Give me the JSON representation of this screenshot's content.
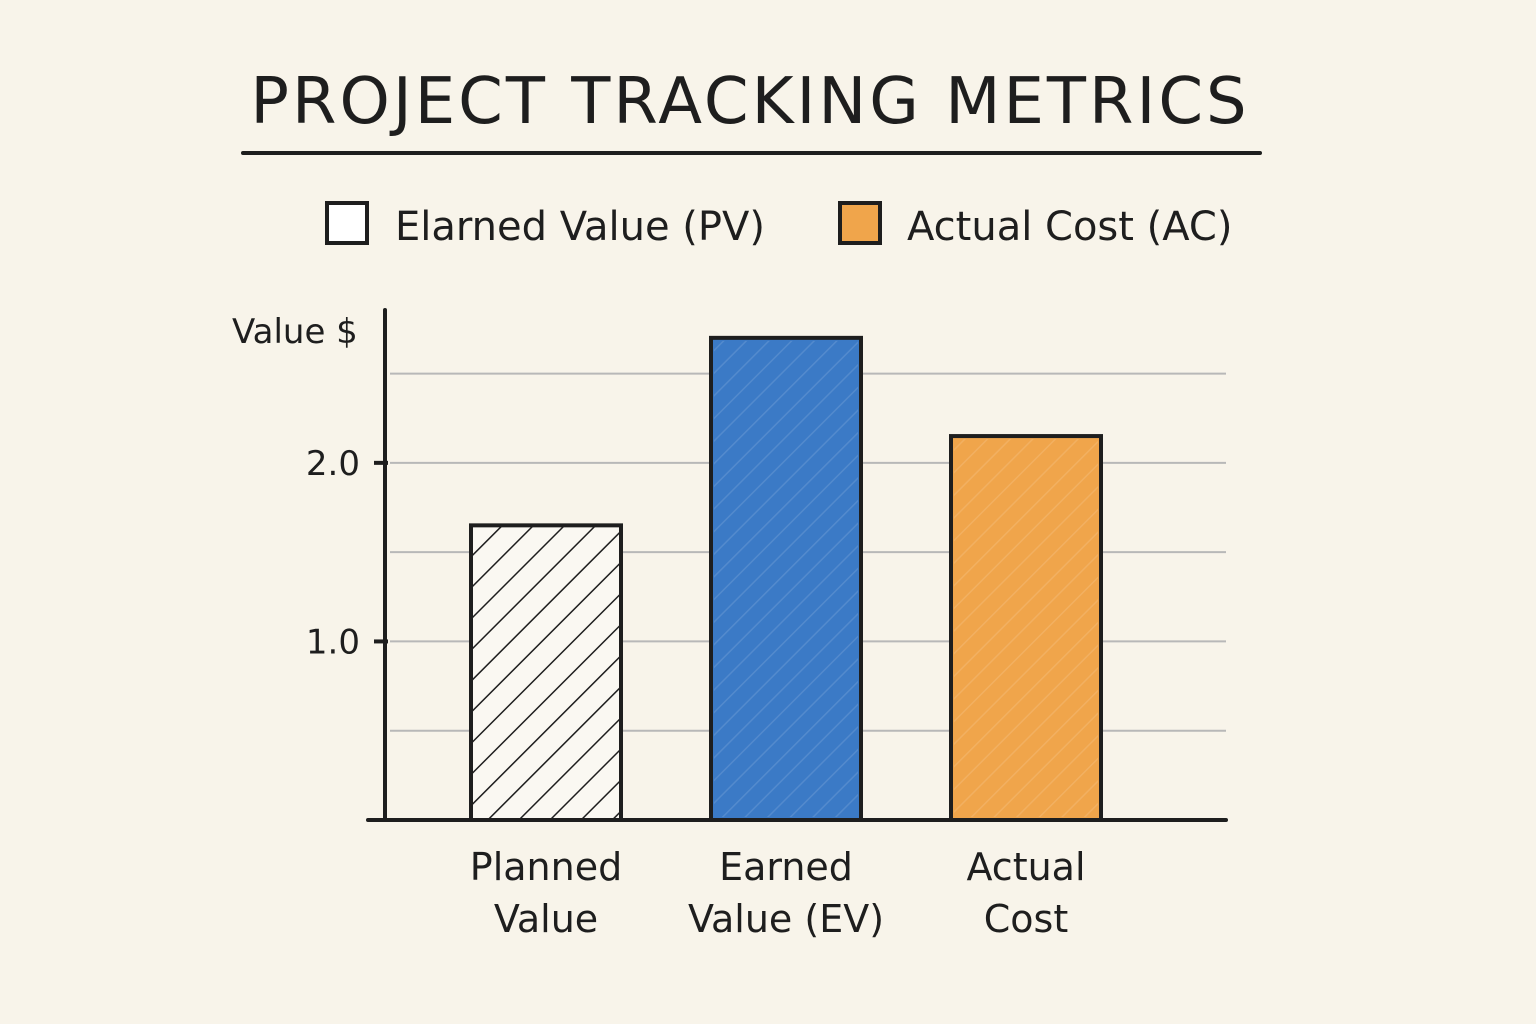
{
  "chart_data": {
    "type": "bar",
    "title": "PROJECT TRACKING METRICS",
    "ylabel": "Value $",
    "xlabel": "",
    "categories": [
      [
        "Planned",
        "Value"
      ],
      [
        "Earned",
        "Value (EV)"
      ],
      [
        "Actual",
        "Cost"
      ]
    ],
    "values": [
      1.65,
      2.7,
      2.15
    ],
    "bar_fills": [
      "hatch",
      "#3b7ac6",
      "#f0a54b"
    ],
    "ylim": [
      0,
      2.8
    ],
    "yticks": [
      1.0,
      2.0
    ],
    "ytick_labels": [
      "1.0",
      "2.0"
    ],
    "gridlines": [
      0.5,
      1.0,
      1.5,
      2.0,
      2.5
    ],
    "grid": true,
    "legend": {
      "position": "top",
      "items": [
        {
          "label": "Elarned Value (PV)",
          "swatch": "#ffffff"
        },
        {
          "label": "Actual Cost (AC)",
          "swatch": "#f0a54b"
        }
      ]
    },
    "colors": {
      "ink": "#1e1e1e",
      "background": "#f8f4ea",
      "grid": "#b8b8b8"
    }
  }
}
